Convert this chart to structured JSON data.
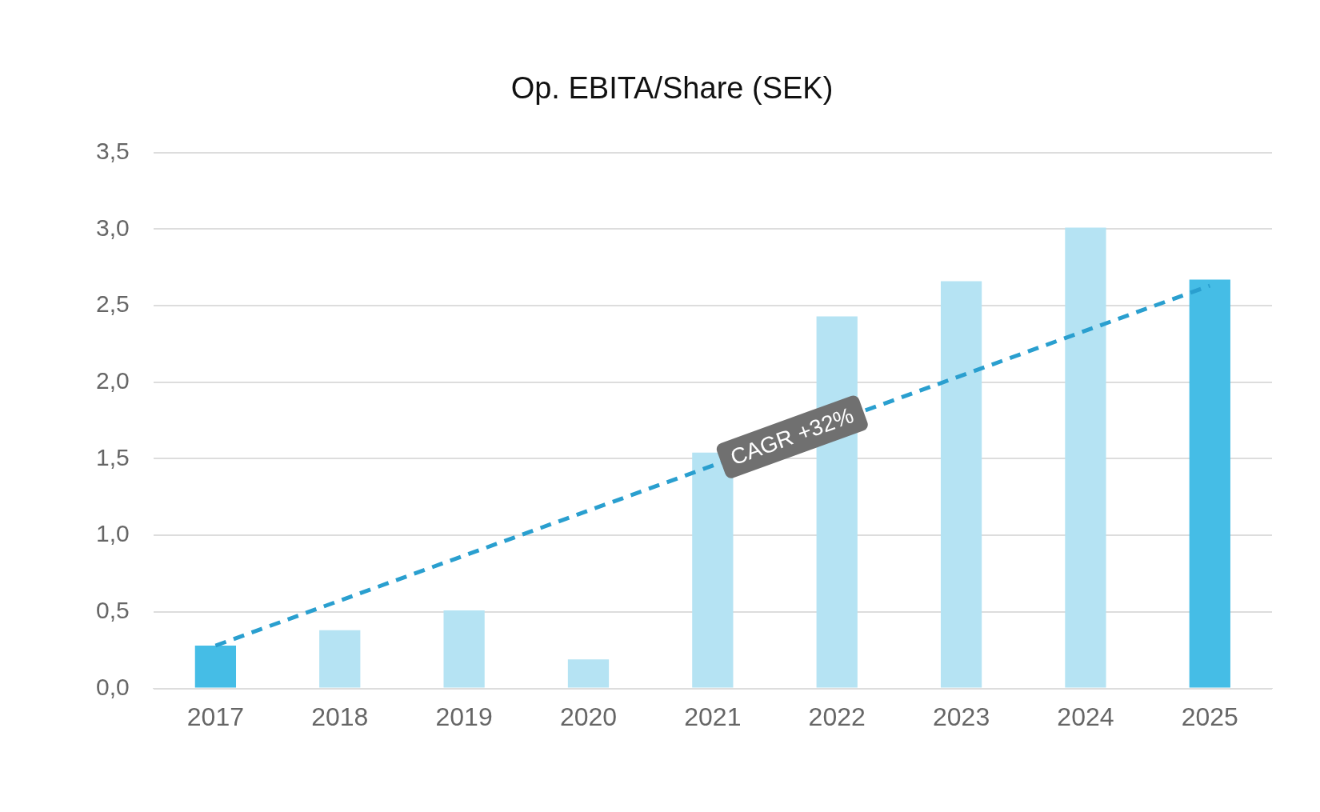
{
  "chart_data": {
    "type": "bar",
    "title": "Op. EBITA/Share (SEK)",
    "categories": [
      "2017",
      "2018",
      "2019",
      "2020",
      "2021",
      "2022",
      "2023",
      "2024",
      "2025"
    ],
    "series": [
      {
        "colors": [
          "#45bde6",
          "#b5e3f3",
          "#b5e3f3",
          "#b5e3f3",
          "#b5e3f3",
          "#b5e3f3",
          "#b5e3f3",
          "#b5e3f3",
          "#45bde6"
        ],
        "values": [
          0.28,
          0.38,
          0.51,
          0.19,
          1.54,
          2.43,
          2.66,
          3.01,
          2.67
        ]
      },
      {
        "type": "line",
        "color": "#2a9fcf",
        "line_style": "dashed",
        "marker": "none",
        "values": [
          0.28,
          null,
          null,
          null,
          null,
          null,
          null,
          null,
          2.63
        ]
      }
    ],
    "annotations": [
      "CAGR +32%"
    ],
    "ylim": [
      0,
      3.5
    ],
    "yticks": [
      {
        "value": 0,
        "label": "0,0"
      },
      {
        "value": 0.5,
        "label": "0,5"
      },
      {
        "value": 1,
        "label": "1,0"
      },
      {
        "value": 1.5,
        "label": "1,5"
      },
      {
        "value": 2,
        "label": "2,0"
      },
      {
        "value": 2.5,
        "label": "2,5"
      },
      {
        "value": 3,
        "label": "3,0"
      },
      {
        "value": 3.5,
        "label": "3,5"
      }
    ],
    "grid": "y",
    "legend": false
  }
}
